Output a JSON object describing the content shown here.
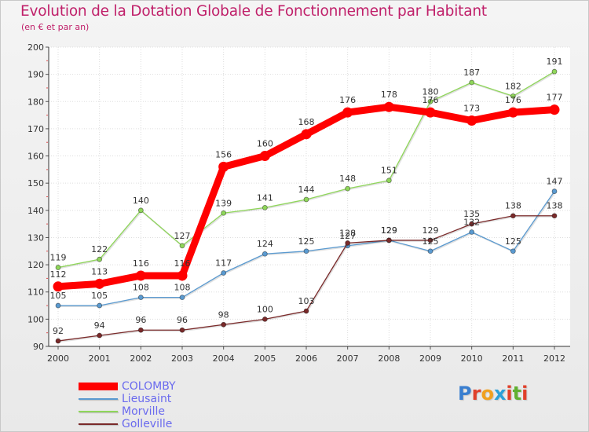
{
  "title": "Evolution de la Dotation Globale de Fonctionnement par Habitant",
  "subtitle": "(en € et par an)",
  "logo": {
    "text": "Proxiti",
    "letter_colors": [
      "#3a7fd0",
      "#e0402a",
      "#f0a020",
      "#2aa0d8",
      "#e0402a",
      "#60b030",
      "#e0402a"
    ]
  },
  "chart_data": {
    "type": "line",
    "title": "Evolution de la Dotation Globale de Fonctionnement par Habitant",
    "subtitle": "(en € et par an)",
    "xlabel": "",
    "ylabel": "",
    "ylim": [
      90,
      200
    ],
    "yticks": [
      "90",
      "100",
      "110",
      "120",
      "130",
      "140",
      "150",
      "160",
      "170",
      "180",
      "190",
      "200"
    ],
    "categories": [
      "2000",
      "2001",
      "2002",
      "2003",
      "2004",
      "2005",
      "2006",
      "2007",
      "2008",
      "2009",
      "2010",
      "2011",
      "2012"
    ],
    "legend_position": "bottom-left",
    "series": [
      {
        "name": "COLOMBY",
        "color": "#ff0000",
        "thick": true,
        "values": [
          112,
          113,
          116,
          116,
          156,
          160,
          168,
          176,
          178,
          176,
          173,
          176,
          177
        ],
        "labels": [
          "112",
          "113",
          "116",
          "116",
          "156",
          "160",
          "168",
          "176",
          "178",
          "176",
          "173",
          "176",
          "177"
        ]
      },
      {
        "name": "Lieusaint",
        "color": "#5a9ad0",
        "thick": false,
        "values": [
          105,
          105,
          108,
          108,
          117,
          124,
          125,
          127,
          129,
          125,
          132,
          125,
          147
        ],
        "labels": [
          "105",
          "105",
          "108",
          "108",
          "117",
          "124",
          "125",
          "127",
          "129",
          "125",
          "132",
          "125",
          "147"
        ]
      },
      {
        "name": "Morville",
        "color": "#8fd65a",
        "thick": false,
        "values": [
          119,
          122,
          140,
          127,
          139,
          141,
          144,
          148,
          151,
          180,
          187,
          182,
          191
        ],
        "labels": [
          "119",
          "122",
          "140",
          "127",
          "139",
          "141",
          "144",
          "148",
          "151",
          "180",
          "187",
          "182",
          "191"
        ]
      },
      {
        "name": "Golleville",
        "color": "#7a2a2a",
        "thick": false,
        "values": [
          92,
          94,
          96,
          96,
          98,
          100,
          103,
          128,
          129,
          129,
          135,
          138,
          138
        ],
        "labels": [
          "92",
          "94",
          "96",
          "96",
          "98",
          "100",
          "103",
          "128",
          "129",
          "129",
          "135",
          "138",
          "138"
        ]
      }
    ]
  }
}
